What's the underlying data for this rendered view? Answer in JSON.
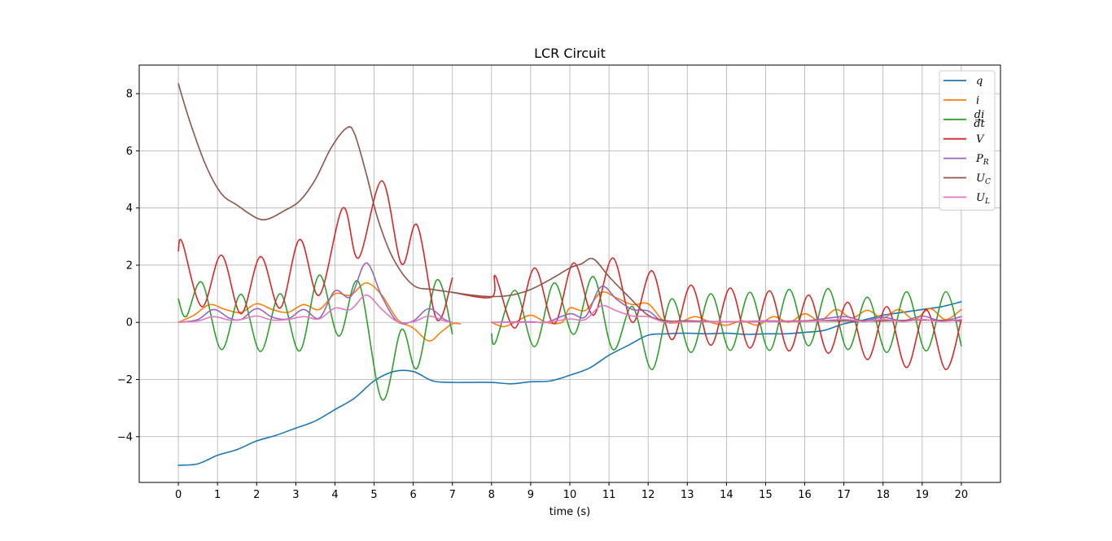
{
  "chart_data": {
    "type": "line",
    "title": "LCR Circuit",
    "xlabel": "time (s)",
    "ylabel": "",
    "xlim": [
      -1,
      21
    ],
    "ylim": [
      -5.6,
      9.0
    ],
    "xticks": [
      0,
      1,
      2,
      3,
      4,
      5,
      6,
      7,
      8,
      9,
      10,
      11,
      12,
      13,
      14,
      15,
      16,
      17,
      18,
      19,
      20
    ],
    "yticks": [
      -4,
      -2,
      0,
      2,
      4,
      6,
      8
    ],
    "grid": true,
    "legend_position": "top-right",
    "series": [
      {
        "name": "q",
        "color": "#1f77b4",
        "points": [
          [
            0,
            -5.0
          ],
          [
            0.5,
            -4.95
          ],
          [
            1,
            -4.65
          ],
          [
            1.5,
            -4.45
          ],
          [
            2,
            -4.15
          ],
          [
            2.5,
            -3.95
          ],
          [
            3,
            -3.7
          ],
          [
            3.5,
            -3.45
          ],
          [
            4,
            -3.05
          ],
          [
            4.5,
            -2.65
          ],
          [
            5,
            -2.05
          ],
          [
            5.5,
            -1.72
          ],
          [
            6,
            -1.72
          ],
          [
            6.5,
            -2.05
          ],
          [
            7,
            -2.1
          ],
          [
            7.5,
            -2.1
          ],
          [
            8,
            -2.1
          ],
          [
            8.5,
            -2.15
          ],
          [
            9,
            -2.08
          ],
          [
            9.5,
            -2.05
          ],
          [
            10,
            -1.85
          ],
          [
            10.5,
            -1.6
          ],
          [
            11,
            -1.15
          ],
          [
            11.5,
            -0.8
          ],
          [
            12,
            -0.45
          ],
          [
            12.5,
            -0.4
          ],
          [
            13,
            -0.38
          ],
          [
            13.5,
            -0.4
          ],
          [
            14,
            -0.38
          ],
          [
            14.5,
            -0.42
          ],
          [
            15,
            -0.4
          ],
          [
            15.5,
            -0.4
          ],
          [
            16,
            -0.35
          ],
          [
            16.5,
            -0.28
          ],
          [
            17,
            -0.05
          ],
          [
            17.5,
            0.08
          ],
          [
            18,
            0.25
          ],
          [
            18.5,
            0.35
          ],
          [
            19,
            0.45
          ],
          [
            19.5,
            0.55
          ],
          [
            20,
            0.72
          ]
        ]
      },
      {
        "name": "i",
        "color": "#ff7f0e",
        "points": [
          [
            0,
            0.0
          ],
          [
            0.4,
            0.25
          ],
          [
            0.8,
            0.62
          ],
          [
            1.2,
            0.45
          ],
          [
            1.6,
            0.35
          ],
          [
            2,
            0.65
          ],
          [
            2.4,
            0.45
          ],
          [
            2.8,
            0.35
          ],
          [
            3.2,
            0.62
          ],
          [
            3.6,
            0.45
          ],
          [
            4,
            1.0
          ],
          [
            4.4,
            0.95
          ],
          [
            4.8,
            1.38
          ],
          [
            5.2,
            0.95
          ],
          [
            5.6,
            0.1
          ],
          [
            6,
            -0.2
          ],
          [
            6.4,
            -0.65
          ],
          [
            6.7,
            -0.35
          ],
          [
            7,
            -0.05
          ],
          [
            7.2,
            -0.05
          ]
        ]
      },
      {
        "name": "i",
        "color": "#ff7f0e",
        "points": [
          [
            8,
            0.0
          ],
          [
            8.3,
            -0.15
          ],
          [
            8.6,
            0.0
          ],
          [
            9,
            0.25
          ],
          [
            9.4,
            0.0
          ],
          [
            9.8,
            0.0
          ],
          [
            10,
            0.5
          ],
          [
            10.4,
            0.42
          ],
          [
            10.8,
            1.05
          ],
          [
            11.2,
            0.85
          ],
          [
            11.6,
            0.62
          ],
          [
            12,
            0.65
          ],
          [
            12.4,
            0.05
          ],
          [
            12.8,
            0.0
          ],
          [
            13.2,
            0.2
          ],
          [
            13.6,
            0.0
          ],
          [
            14,
            -0.1
          ],
          [
            14.4,
            0.05
          ],
          [
            14.8,
            -0.1
          ],
          [
            15.2,
            0.2
          ],
          [
            15.6,
            0.0
          ],
          [
            16,
            0.3
          ],
          [
            16.4,
            0.05
          ],
          [
            16.8,
            0.45
          ],
          [
            17.2,
            0.15
          ],
          [
            17.6,
            0.42
          ],
          [
            18,
            0.15
          ],
          [
            18.4,
            0.45
          ],
          [
            18.8,
            0.1
          ],
          [
            19.2,
            0.48
          ],
          [
            19.6,
            0.1
          ],
          [
            20,
            0.45
          ]
        ]
      },
      {
        "name": "di/dt",
        "color": "#2ca02c",
        "points": [
          [
            0,
            0.82
          ],
          [
            0.2,
            0.2
          ],
          [
            0.6,
            1.4
          ],
          [
            1.1,
            -0.95
          ],
          [
            1.6,
            0.98
          ],
          [
            2.1,
            -1.02
          ],
          [
            2.6,
            1.0
          ],
          [
            3.1,
            -1.0
          ],
          [
            3.6,
            1.65
          ],
          [
            4.1,
            -0.48
          ],
          [
            4.6,
            1.42
          ],
          [
            5.2,
            -2.7
          ],
          [
            5.7,
            -0.25
          ],
          [
            6.1,
            -1.6
          ],
          [
            6.6,
            1.48
          ],
          [
            7,
            -0.4
          ]
        ]
      },
      {
        "name": "di/dt",
        "color": "#2ca02c",
        "points": [
          [
            8,
            -0.4
          ],
          [
            8.1,
            -0.7
          ],
          [
            8.6,
            1.12
          ],
          [
            9.1,
            -0.85
          ],
          [
            9.6,
            1.38
          ],
          [
            10.1,
            -0.42
          ],
          [
            10.6,
            1.6
          ],
          [
            11.1,
            -0.95
          ],
          [
            11.6,
            0.55
          ],
          [
            12.1,
            -1.65
          ],
          [
            12.6,
            0.82
          ],
          [
            13.1,
            -1.05
          ],
          [
            13.6,
            1.0
          ],
          [
            14.1,
            -0.98
          ],
          [
            14.6,
            1.05
          ],
          [
            15.1,
            -0.98
          ],
          [
            15.6,
            1.15
          ],
          [
            16.1,
            -0.82
          ],
          [
            16.6,
            1.18
          ],
          [
            17.1,
            -0.95
          ],
          [
            17.6,
            0.88
          ],
          [
            18.1,
            -1.05
          ],
          [
            18.6,
            1.07
          ],
          [
            19.1,
            -1.0
          ],
          [
            19.6,
            1.07
          ],
          [
            20,
            -0.82
          ]
        ]
      },
      {
        "name": "V",
        "color": "#d62728",
        "points": [
          [
            0,
            2.5
          ],
          [
            0.1,
            2.8
          ],
          [
            0.6,
            0.55
          ],
          [
            1.1,
            2.35
          ],
          [
            1.6,
            0.3
          ],
          [
            2.1,
            2.3
          ],
          [
            2.6,
            0.5
          ],
          [
            3.1,
            2.9
          ],
          [
            3.6,
            0.95
          ],
          [
            4.2,
            4.0
          ],
          [
            4.6,
            2.25
          ],
          [
            5.2,
            4.95
          ],
          [
            5.7,
            2.05
          ],
          [
            6.1,
            3.4
          ],
          [
            6.6,
            0.1
          ],
          [
            7,
            1.55
          ]
        ]
      },
      {
        "name": "V",
        "color": "#d62728",
        "points": [
          [
            7,
            1.05
          ],
          [
            8,
            0.88
          ],
          [
            8.1,
            1.62
          ],
          [
            8.6,
            -0.2
          ],
          [
            9.1,
            1.9
          ],
          [
            9.6,
            -0.05
          ],
          [
            10.1,
            2.08
          ],
          [
            10.6,
            0.25
          ],
          [
            11.1,
            2.25
          ],
          [
            11.6,
            0.0
          ],
          [
            12.1,
            1.8
          ],
          [
            12.6,
            -0.6
          ],
          [
            13.1,
            1.3
          ],
          [
            13.6,
            -0.8
          ],
          [
            14.1,
            1.2
          ],
          [
            14.6,
            -0.9
          ],
          [
            15.1,
            1.1
          ],
          [
            15.6,
            -1.0
          ],
          [
            16.1,
            0.95
          ],
          [
            16.6,
            -1.08
          ],
          [
            17.1,
            0.7
          ],
          [
            17.6,
            -1.3
          ],
          [
            18.1,
            0.55
          ],
          [
            18.6,
            -1.58
          ],
          [
            19.1,
            0.45
          ],
          [
            19.6,
            -1.65
          ],
          [
            20,
            0.1
          ]
        ]
      },
      {
        "name": "P_R",
        "color": "#9467bd",
        "points": [
          [
            0,
            0.0
          ],
          [
            0.5,
            0.1
          ],
          [
            0.9,
            0.45
          ],
          [
            1.3,
            0.15
          ],
          [
            1.6,
            0.1
          ],
          [
            2,
            0.48
          ],
          [
            2.4,
            0.18
          ],
          [
            2.8,
            0.12
          ],
          [
            3.2,
            0.45
          ],
          [
            3.6,
            0.15
          ],
          [
            4,
            1.1
          ],
          [
            4.4,
            0.9
          ],
          [
            4.8,
            2.08
          ],
          [
            5.2,
            0.9
          ],
          [
            5.6,
            0.02
          ],
          [
            6,
            0.05
          ],
          [
            6.4,
            0.48
          ],
          [
            6.8,
            0.1
          ],
          [
            7,
            0.0
          ]
        ]
      },
      {
        "name": "P_R",
        "color": "#9467bd",
        "points": [
          [
            8,
            0.0
          ],
          [
            9,
            0.02
          ],
          [
            9.4,
            0.0
          ],
          [
            10,
            0.3
          ],
          [
            10.4,
            0.2
          ],
          [
            10.8,
            1.25
          ],
          [
            11.2,
            0.8
          ],
          [
            11.6,
            0.45
          ],
          [
            12,
            0.4
          ],
          [
            12.4,
            0.02
          ],
          [
            13,
            0.05
          ],
          [
            14,
            0.02
          ],
          [
            15,
            0.05
          ],
          [
            16,
            0.05
          ],
          [
            17,
            0.2
          ],
          [
            17.5,
            0.05
          ],
          [
            18,
            0.18
          ],
          [
            18.5,
            0.05
          ],
          [
            19,
            0.22
          ],
          [
            19.5,
            0.05
          ],
          [
            20,
            0.2
          ]
        ]
      },
      {
        "name": "U_C",
        "color": "#8c564b",
        "points": [
          [
            0,
            8.35
          ],
          [
            0.3,
            7.0
          ],
          [
            0.7,
            5.5
          ],
          [
            1.1,
            4.5
          ],
          [
            1.5,
            4.1
          ],
          [
            2,
            3.65
          ],
          [
            2.3,
            3.62
          ],
          [
            2.7,
            3.9
          ],
          [
            3.1,
            4.25
          ],
          [
            3.5,
            5.0
          ],
          [
            3.9,
            6.1
          ],
          [
            4.3,
            6.8
          ],
          [
            4.5,
            6.6
          ],
          [
            4.8,
            5.2
          ],
          [
            5.1,
            3.6
          ],
          [
            5.5,
            2.2
          ],
          [
            6,
            1.3
          ],
          [
            6.5,
            1.15
          ],
          [
            7,
            1.05
          ],
          [
            7.5,
            0.95
          ],
          [
            8,
            0.9
          ],
          [
            8.5,
            0.95
          ],
          [
            9,
            1.15
          ],
          [
            9.5,
            1.5
          ],
          [
            10,
            1.9
          ],
          [
            10.3,
            2.05
          ],
          [
            10.6,
            2.22
          ],
          [
            11,
            1.6
          ],
          [
            11.5,
            0.9
          ],
          [
            12,
            0.25
          ],
          [
            12.5,
            0.05
          ],
          [
            13,
            0.05
          ],
          [
            14,
            0.02
          ],
          [
            15,
            0.03
          ],
          [
            16,
            0.05
          ],
          [
            17,
            0.05
          ],
          [
            18,
            0.05
          ],
          [
            19,
            0.08
          ],
          [
            20,
            0.05
          ]
        ]
      },
      {
        "name": "U_L",
        "color": "#e377c2",
        "points": [
          [
            0,
            0.0
          ],
          [
            0.5,
            0.05
          ],
          [
            0.9,
            0.2
          ],
          [
            1.3,
            0.08
          ],
          [
            1.6,
            0.1
          ],
          [
            2,
            0.22
          ],
          [
            2.4,
            0.08
          ],
          [
            2.8,
            0.1
          ],
          [
            3.2,
            0.2
          ],
          [
            3.6,
            0.12
          ],
          [
            4,
            0.5
          ],
          [
            4.4,
            0.45
          ],
          [
            4.8,
            0.95
          ],
          [
            5.2,
            0.45
          ],
          [
            5.6,
            0.02
          ],
          [
            6,
            0.02
          ],
          [
            6.4,
            0.22
          ],
          [
            6.8,
            0.05
          ],
          [
            7,
            0.0
          ]
        ]
      },
      {
        "name": "U_L",
        "color": "#e377c2",
        "points": [
          [
            8,
            0.0
          ],
          [
            9,
            0.0
          ],
          [
            9.5,
            0.02
          ],
          [
            10,
            0.12
          ],
          [
            10.4,
            0.1
          ],
          [
            10.8,
            0.58
          ],
          [
            11.2,
            0.4
          ],
          [
            11.6,
            0.22
          ],
          [
            12,
            0.2
          ],
          [
            12.4,
            0.02
          ],
          [
            13,
            0.02
          ],
          [
            14,
            0.02
          ],
          [
            15,
            0.03
          ],
          [
            16,
            0.03
          ],
          [
            17,
            0.1
          ],
          [
            17.5,
            0.03
          ],
          [
            18,
            0.1
          ],
          [
            18.5,
            0.03
          ],
          [
            19,
            0.1
          ],
          [
            19.5,
            0.03
          ],
          [
            20,
            0.1
          ]
        ]
      }
    ],
    "legend": [
      {
        "label": "q",
        "sub": "",
        "color": "#1f77b4"
      },
      {
        "label": "i",
        "sub": "",
        "color": "#ff7f0e"
      },
      {
        "label": "di/dt",
        "sub": "",
        "color": "#2ca02c"
      },
      {
        "label": "V",
        "sub": "",
        "color": "#d62728"
      },
      {
        "label": "P",
        "sub": "R",
        "color": "#9467bd"
      },
      {
        "label": "U",
        "sub": "C",
        "color": "#8c564b"
      },
      {
        "label": "U",
        "sub": "L",
        "color": "#e377c2"
      }
    ]
  }
}
